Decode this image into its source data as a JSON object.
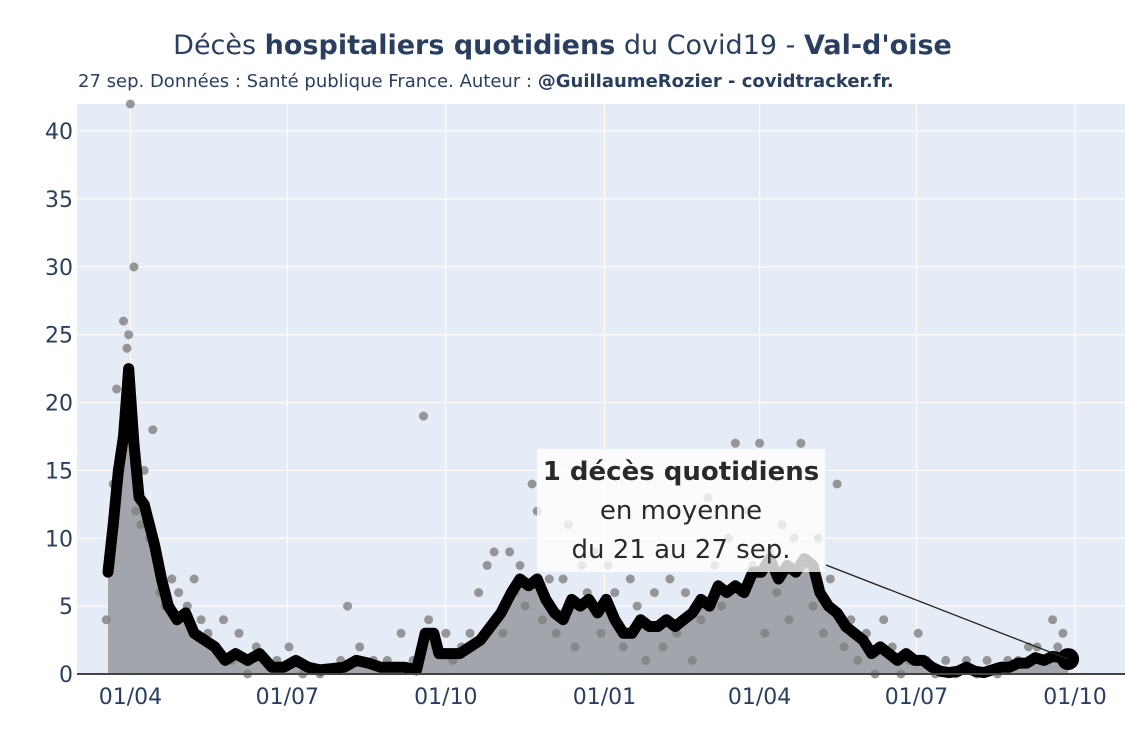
{
  "header": {
    "title_parts": [
      "Décès ",
      "hospitaliers quotidiens",
      " du Covid19 - ",
      "Val-d'oise"
    ],
    "subtitle_plain": "27 sep. Données : Santé publique France. Auteur : ",
    "subtitle_bold": "@GuillaumeRozier - covidtracker.fr."
  },
  "colors": {
    "plot_bg": "#e5ecf6",
    "grid": "#ffffff",
    "area_fill": "#9ea2a8",
    "scatter": "#7f7f7f",
    "line": "#000000",
    "axis_text": "#2a3f5f"
  },
  "chart_data": {
    "type": "line",
    "title": "",
    "xlabel": "",
    "ylabel": "",
    "ylim": [
      0,
      42
    ],
    "y_ticks": [
      0,
      5,
      10,
      15,
      20,
      25,
      30,
      35,
      40
    ],
    "x_ticks": [
      {
        "label": "01/04",
        "date": "2020-04-01"
      },
      {
        "label": "01/07",
        "date": "2020-07-01"
      },
      {
        "label": "01/10",
        "date": "2020-10-01"
      },
      {
        "label": "01/01",
        "date": "2021-01-01"
      },
      {
        "label": "01/04",
        "date": "2021-04-01"
      },
      {
        "label": "01/07",
        "date": "2021-07-01"
      },
      {
        "label": "01/10",
        "date": "2021-10-01"
      }
    ],
    "xlim": [
      "2020-03-01",
      "2021-10-30"
    ],
    "grid": true,
    "legend": "none",
    "series": [
      {
        "role": "rolling-average",
        "points": [
          [
            "2020-03-19",
            7.5
          ],
          [
            "2020-03-22",
            11
          ],
          [
            "2020-03-25",
            15
          ],
          [
            "2020-03-28",
            17.5
          ],
          [
            "2020-03-31",
            22.5
          ],
          [
            "2020-04-03",
            17
          ],
          [
            "2020-04-06",
            13
          ],
          [
            "2020-04-09",
            12.5
          ],
          [
            "2020-04-12",
            11
          ],
          [
            "2020-04-15",
            9.5
          ],
          [
            "2020-04-19",
            7
          ],
          [
            "2020-04-23",
            5
          ],
          [
            "2020-04-28",
            4
          ],
          [
            "2020-05-03",
            4.5
          ],
          [
            "2020-05-08",
            3
          ],
          [
            "2020-05-14",
            2.5
          ],
          [
            "2020-05-20",
            2
          ],
          [
            "2020-05-26",
            1
          ],
          [
            "2020-06-01",
            1.5
          ],
          [
            "2020-06-08",
            1
          ],
          [
            "2020-06-15",
            1.5
          ],
          [
            "2020-06-22",
            0.5
          ],
          [
            "2020-06-29",
            0.5
          ],
          [
            "2020-07-06",
            1
          ],
          [
            "2020-07-13",
            0.5
          ],
          [
            "2020-07-20",
            0.3
          ],
          [
            "2020-07-27",
            0.4
          ],
          [
            "2020-08-03",
            0.5
          ],
          [
            "2020-08-10",
            1
          ],
          [
            "2020-08-17",
            0.8
          ],
          [
            "2020-08-24",
            0.5
          ],
          [
            "2020-08-31",
            0.5
          ],
          [
            "2020-09-07",
            0.5
          ],
          [
            "2020-09-14",
            0.3
          ],
          [
            "2020-09-19",
            3
          ],
          [
            "2020-09-24",
            3
          ],
          [
            "2020-09-27",
            1.5
          ],
          [
            "2020-10-03",
            1.5
          ],
          [
            "2020-10-09",
            1.5
          ],
          [
            "2020-10-15",
            2
          ],
          [
            "2020-10-21",
            2.5
          ],
          [
            "2020-10-27",
            3.5
          ],
          [
            "2020-11-02",
            4.5
          ],
          [
            "2020-11-08",
            6
          ],
          [
            "2020-11-13",
            7
          ],
          [
            "2020-11-18",
            6.5
          ],
          [
            "2020-11-23",
            7
          ],
          [
            "2020-11-28",
            5.5
          ],
          [
            "2020-12-03",
            4.5
          ],
          [
            "2020-12-08",
            4
          ],
          [
            "2020-12-13",
            5.5
          ],
          [
            "2020-12-18",
            5
          ],
          [
            "2020-12-23",
            5.5
          ],
          [
            "2020-12-28",
            4.5
          ],
          [
            "2021-01-02",
            5.5
          ],
          [
            "2021-01-07",
            4
          ],
          [
            "2021-01-12",
            3
          ],
          [
            "2021-01-17",
            3
          ],
          [
            "2021-01-22",
            4
          ],
          [
            "2021-01-27",
            3.5
          ],
          [
            "2021-02-01",
            3.5
          ],
          [
            "2021-02-06",
            4
          ],
          [
            "2021-02-11",
            3.5
          ],
          [
            "2021-02-16",
            4
          ],
          [
            "2021-02-21",
            4.5
          ],
          [
            "2021-02-26",
            5.5
          ],
          [
            "2021-03-03",
            5
          ],
          [
            "2021-03-08",
            6.5
          ],
          [
            "2021-03-13",
            6
          ],
          [
            "2021-03-18",
            6.5
          ],
          [
            "2021-03-23",
            6
          ],
          [
            "2021-03-28",
            7.5
          ],
          [
            "2021-04-02",
            7.5
          ],
          [
            "2021-04-07",
            8.5
          ],
          [
            "2021-04-12",
            7
          ],
          [
            "2021-04-17",
            8
          ],
          [
            "2021-04-22",
            7.5
          ],
          [
            "2021-04-27",
            8.5
          ],
          [
            "2021-05-02",
            8
          ],
          [
            "2021-05-06",
            6
          ],
          [
            "2021-05-11",
            5
          ],
          [
            "2021-05-16",
            4.5
          ],
          [
            "2021-05-21",
            3.5
          ],
          [
            "2021-05-26",
            3
          ],
          [
            "2021-05-31",
            2.5
          ],
          [
            "2021-06-05",
            1.5
          ],
          [
            "2021-06-10",
            2
          ],
          [
            "2021-06-15",
            1.5
          ],
          [
            "2021-06-20",
            1
          ],
          [
            "2021-06-25",
            1.5
          ],
          [
            "2021-06-30",
            1
          ],
          [
            "2021-07-05",
            1
          ],
          [
            "2021-07-10",
            0.5
          ],
          [
            "2021-07-15",
            0.2
          ],
          [
            "2021-07-20",
            0.1
          ],
          [
            "2021-07-25",
            0.2
          ],
          [
            "2021-07-30",
            0.5
          ],
          [
            "2021-08-04",
            0.2
          ],
          [
            "2021-08-09",
            0.1
          ],
          [
            "2021-08-14",
            0.3
          ],
          [
            "2021-08-19",
            0.5
          ],
          [
            "2021-08-24",
            0.5
          ],
          [
            "2021-08-29",
            0.8
          ],
          [
            "2021-09-03",
            0.8
          ],
          [
            "2021-09-08",
            1.2
          ],
          [
            "2021-09-13",
            1
          ],
          [
            "2021-09-18",
            1.3
          ],
          [
            "2021-09-23",
            1.2
          ],
          [
            "2021-09-27",
            1.1
          ]
        ]
      },
      {
        "role": "daily-deaths",
        "points": [
          [
            "2020-03-18",
            4
          ],
          [
            "2020-03-20",
            8
          ],
          [
            "2020-03-22",
            14
          ],
          [
            "2020-03-24",
            21
          ],
          [
            "2020-03-26",
            15
          ],
          [
            "2020-03-28",
            26
          ],
          [
            "2020-03-29",
            18
          ],
          [
            "2020-03-30",
            24
          ],
          [
            "2020-03-31",
            25
          ],
          [
            "2020-04-01",
            42
          ],
          [
            "2020-04-02",
            20
          ],
          [
            "2020-04-03",
            30
          ],
          [
            "2020-04-04",
            12
          ],
          [
            "2020-04-05",
            14
          ],
          [
            "2020-04-07",
            11
          ],
          [
            "2020-04-09",
            15
          ],
          [
            "2020-04-12",
            10
          ],
          [
            "2020-04-14",
            18
          ],
          [
            "2020-04-16",
            9
          ],
          [
            "2020-04-18",
            6
          ],
          [
            "2020-04-21",
            5
          ],
          [
            "2020-04-25",
            7
          ],
          [
            "2020-04-29",
            6
          ],
          [
            "2020-05-04",
            5
          ],
          [
            "2020-05-08",
            7
          ],
          [
            "2020-05-12",
            4
          ],
          [
            "2020-05-16",
            3
          ],
          [
            "2020-05-20",
            2
          ],
          [
            "2020-05-25",
            4
          ],
          [
            "2020-05-30",
            1
          ],
          [
            "2020-06-03",
            3
          ],
          [
            "2020-06-08",
            0
          ],
          [
            "2020-06-13",
            2
          ],
          [
            "2020-06-18",
            1
          ],
          [
            "2020-06-25",
            1
          ],
          [
            "2020-07-02",
            2
          ],
          [
            "2020-07-10",
            0
          ],
          [
            "2020-07-20",
            0
          ],
          [
            "2020-08-01",
            1
          ],
          [
            "2020-08-05",
            5
          ],
          [
            "2020-08-12",
            2
          ],
          [
            "2020-08-20",
            1
          ],
          [
            "2020-08-28",
            1
          ],
          [
            "2020-09-05",
            3
          ],
          [
            "2020-09-12",
            1
          ],
          [
            "2020-09-18",
            19
          ],
          [
            "2020-09-21",
            4
          ],
          [
            "2020-09-25",
            2
          ],
          [
            "2020-10-01",
            3
          ],
          [
            "2020-10-05",
            1
          ],
          [
            "2020-10-10",
            2
          ],
          [
            "2020-10-15",
            3
          ],
          [
            "2020-10-20",
            6
          ],
          [
            "2020-10-25",
            8
          ],
          [
            "2020-10-29",
            9
          ],
          [
            "2020-11-03",
            3
          ],
          [
            "2020-11-07",
            9
          ],
          [
            "2020-11-10",
            6
          ],
          [
            "2020-11-13",
            8
          ],
          [
            "2020-11-16",
            5
          ],
          [
            "2020-11-20",
            14
          ],
          [
            "2020-11-23",
            12
          ],
          [
            "2020-11-26",
            4
          ],
          [
            "2020-11-30",
            7
          ],
          [
            "2020-12-04",
            3
          ],
          [
            "2020-12-08",
            7
          ],
          [
            "2020-12-11",
            11
          ],
          [
            "2020-12-15",
            2
          ],
          [
            "2020-12-19",
            8
          ],
          [
            "2020-12-22",
            6
          ],
          [
            "2020-12-26",
            9
          ],
          [
            "2020-12-30",
            3
          ],
          [
            "2021-01-03",
            8
          ],
          [
            "2021-01-07",
            6
          ],
          [
            "2021-01-12",
            2
          ],
          [
            "2021-01-16",
            7
          ],
          [
            "2021-01-20",
            5
          ],
          [
            "2021-01-25",
            1
          ],
          [
            "2021-01-30",
            6
          ],
          [
            "2021-02-04",
            2
          ],
          [
            "2021-02-08",
            7
          ],
          [
            "2021-02-12",
            3
          ],
          [
            "2021-02-17",
            6
          ],
          [
            "2021-02-21",
            1
          ],
          [
            "2021-02-26",
            4
          ],
          [
            "2021-03-02",
            13
          ],
          [
            "2021-03-06",
            8
          ],
          [
            "2021-03-10",
            5
          ],
          [
            "2021-03-14",
            10
          ],
          [
            "2021-03-18",
            17
          ],
          [
            "2021-03-21",
            6
          ],
          [
            "2021-03-25",
            12
          ],
          [
            "2021-03-28",
            8
          ],
          [
            "2021-04-01",
            17
          ],
          [
            "2021-04-04",
            3
          ],
          [
            "2021-04-07",
            9
          ],
          [
            "2021-04-11",
            6
          ],
          [
            "2021-04-14",
            11
          ],
          [
            "2021-04-18",
            4
          ],
          [
            "2021-04-21",
            10
          ],
          [
            "2021-04-25",
            17
          ],
          [
            "2021-04-28",
            8
          ],
          [
            "2021-05-02",
            5
          ],
          [
            "2021-05-05",
            10
          ],
          [
            "2021-05-08",
            3
          ],
          [
            "2021-05-12",
            7
          ],
          [
            "2021-05-16",
            14
          ],
          [
            "2021-05-20",
            2
          ],
          [
            "2021-05-24",
            4
          ],
          [
            "2021-05-28",
            1
          ],
          [
            "2021-06-02",
            3
          ],
          [
            "2021-06-07",
            0
          ],
          [
            "2021-06-12",
            4
          ],
          [
            "2021-06-17",
            2
          ],
          [
            "2021-06-22",
            0
          ],
          [
            "2021-06-27",
            1
          ],
          [
            "2021-07-02",
            3
          ],
          [
            "2021-07-07",
            1
          ],
          [
            "2021-07-12",
            0
          ],
          [
            "2021-07-18",
            1
          ],
          [
            "2021-07-24",
            0
          ],
          [
            "2021-07-30",
            1
          ],
          [
            "2021-08-05",
            0
          ],
          [
            "2021-08-11",
            1
          ],
          [
            "2021-08-17",
            0
          ],
          [
            "2021-08-23",
            1
          ],
          [
            "2021-08-29",
            1
          ],
          [
            "2021-09-04",
            2
          ],
          [
            "2021-09-09",
            2
          ],
          [
            "2021-09-14",
            1
          ],
          [
            "2021-09-18",
            4
          ],
          [
            "2021-09-21",
            2
          ],
          [
            "2021-09-24",
            3
          ],
          [
            "2021-09-27",
            1
          ]
        ]
      }
    ],
    "last_point": {
      "date": "2021-09-27",
      "value": 1.1
    },
    "annotation": {
      "line1": "1 décès quotidiens",
      "line2": "en moyenne",
      "line3": "du 21 au 27 sep.",
      "points_to": {
        "date": "2021-09-27",
        "value": 1.1
      }
    }
  }
}
